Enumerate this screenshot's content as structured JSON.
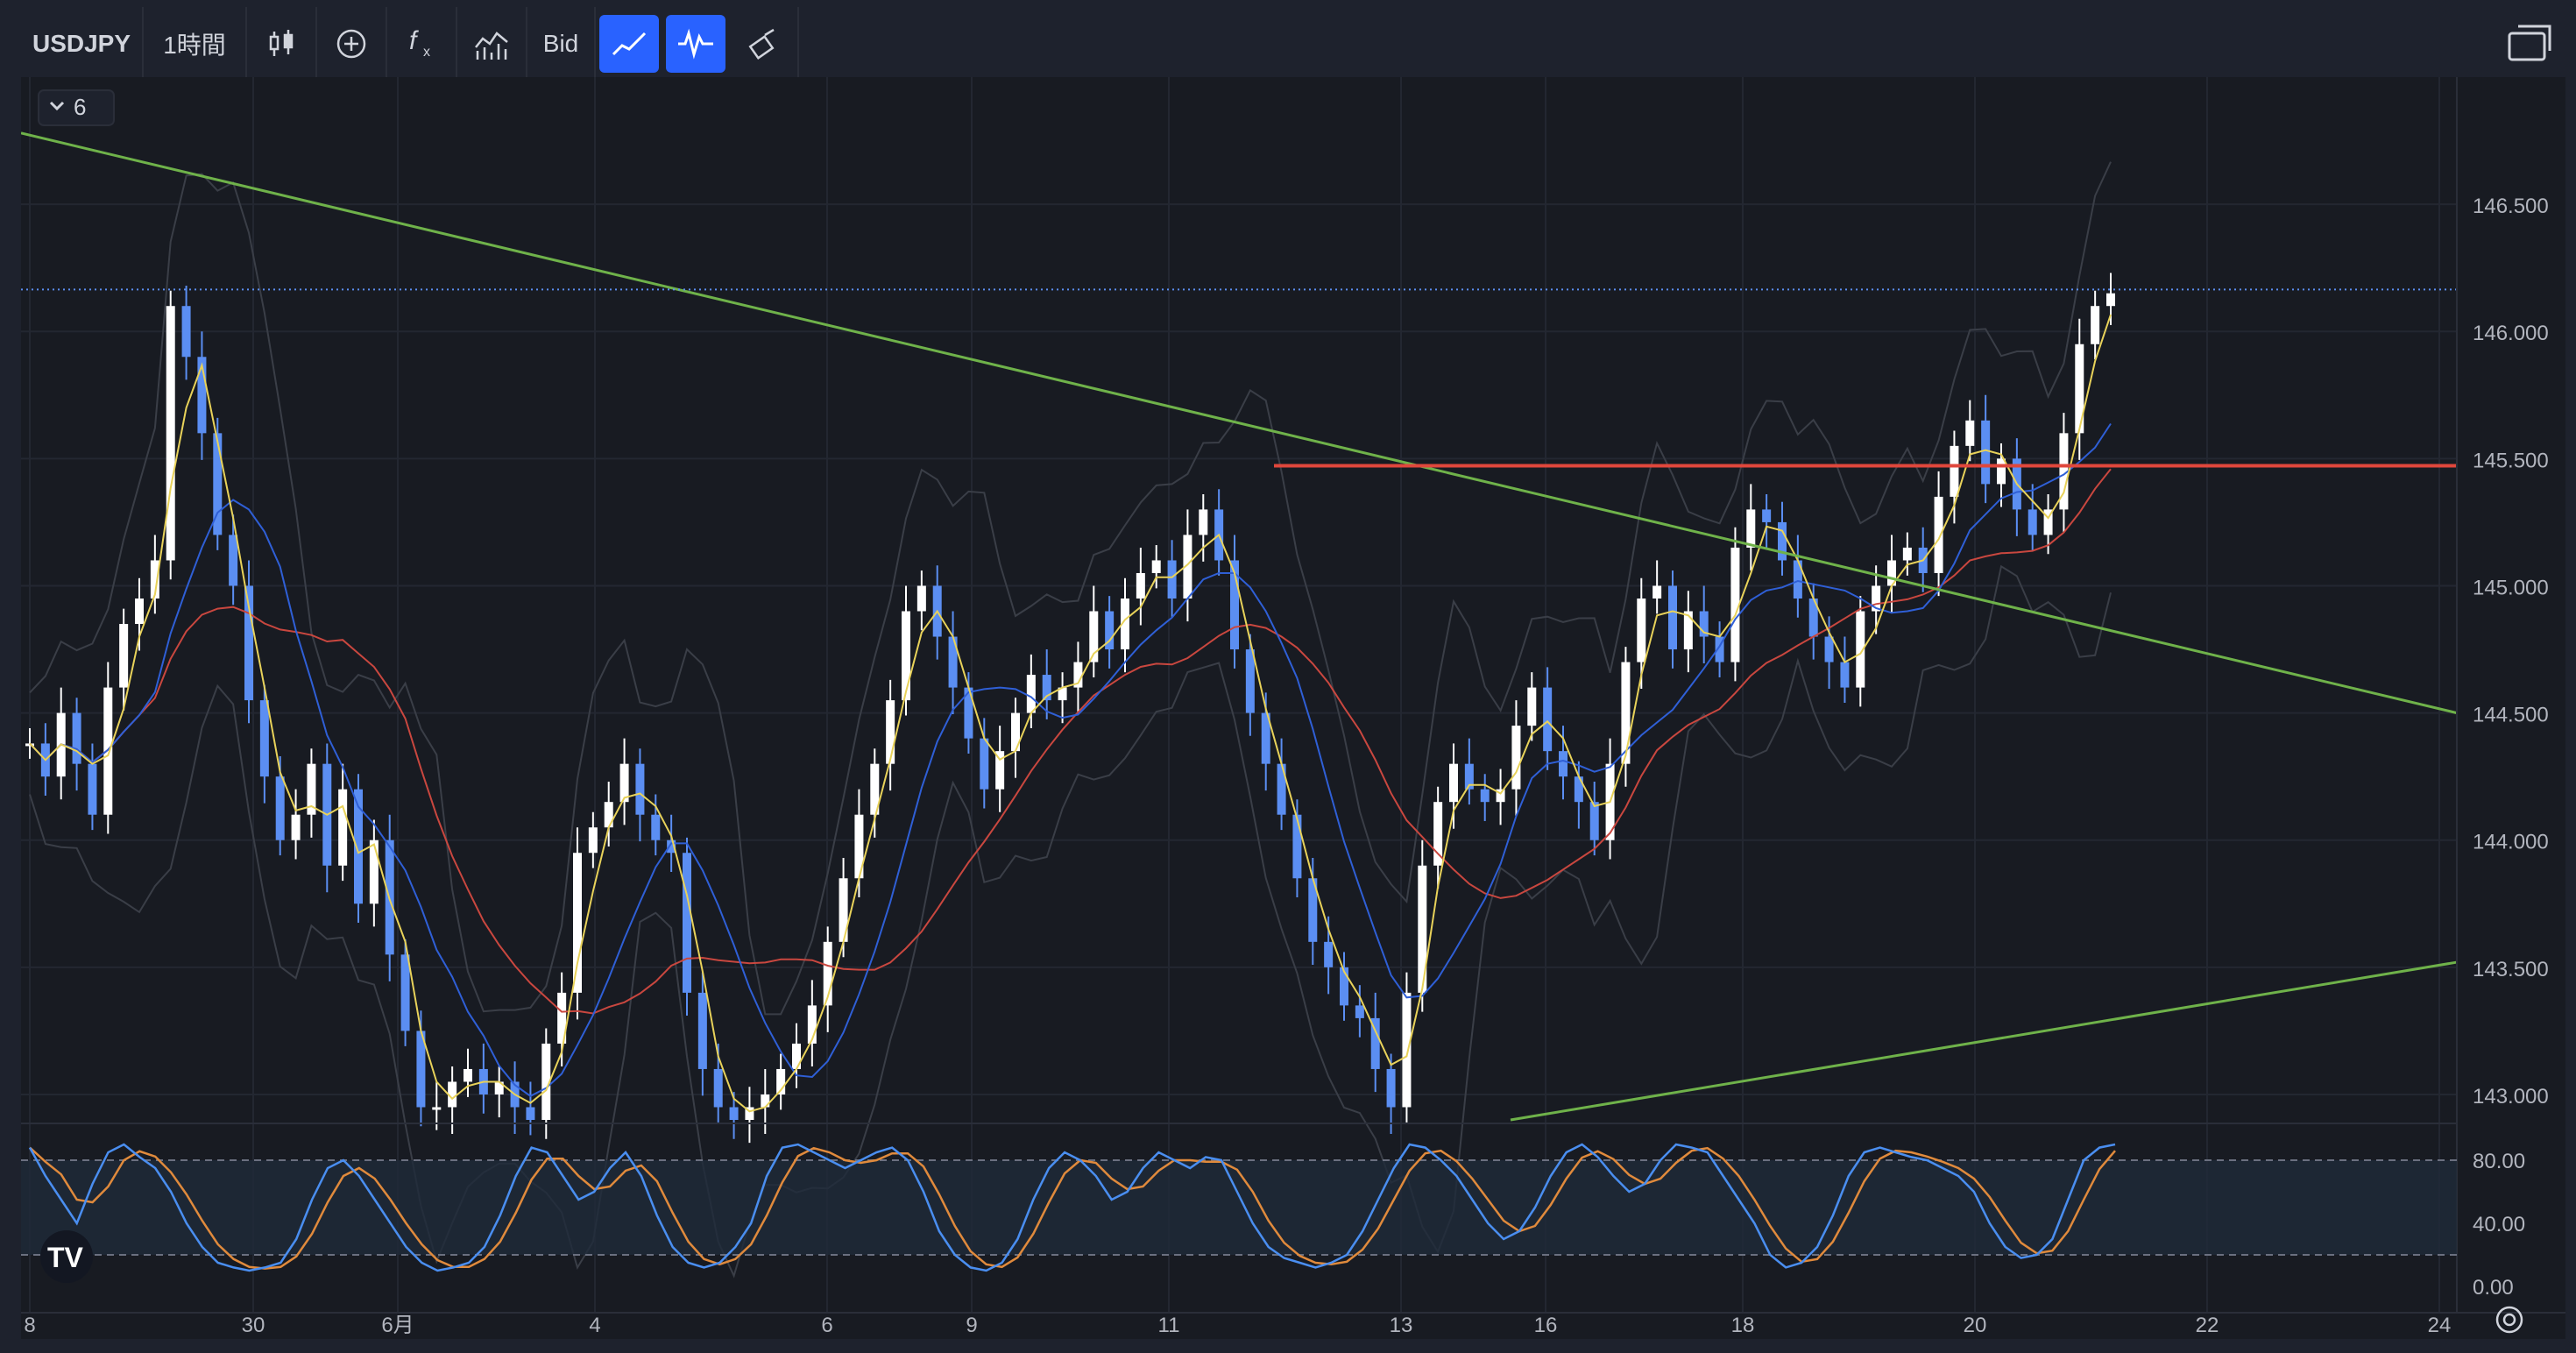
{
  "toolbar": {
    "symbol": "USDJPY",
    "interval": "1時間",
    "bid_label": "Bid",
    "icons": [
      "candles-icon",
      "add-indicator-icon",
      "function-icon",
      "chart-style-icon",
      "bid-label",
      "trend-line-icon",
      "oscillator-icon",
      "brush-icon"
    ]
  },
  "collapse_label": "6",
  "colors": {
    "background": "#181b22",
    "up_candle": "#ffffff",
    "down_candle": "#5b8ef2",
    "ma_fast": "#e8d25a",
    "ma_mid": "#2f5fd6",
    "ma_slow": "#c9473f",
    "trendline": "#6fb24a",
    "horizontal_line": "#e0473c",
    "stoch_k": "#4a8ef0",
    "stoch_d": "#e08a3c"
  },
  "chart_data": {
    "type": "candlestick",
    "symbol": "USDJPY",
    "timeframe": "1時間",
    "price_axis": {
      "ticks": [
        "146.500",
        "146.000",
        "145.500",
        "145.000",
        "144.500",
        "144.000",
        "143.500",
        "143.000"
      ],
      "range": [
        142.9,
        147.0
      ]
    },
    "time_axis_labels": [
      "8",
      "30",
      "6月",
      "4",
      "6",
      "9",
      "11",
      "13",
      "16",
      "18",
      "20",
      "22",
      "24"
    ],
    "current_price_label": "146.165",
    "horizontal_level_label": "145.472",
    "horizontal_level": 145.472,
    "current_price": 146.165,
    "trendlines": [
      {
        "name": "descending",
        "from_label": "8",
        "to_label": "24",
        "start_price": 146.78,
        "end_price": 144.5
      },
      {
        "name": "ascending",
        "from_label": "16",
        "to_label": "24",
        "start_price": 142.9,
        "end_price": 143.52
      }
    ],
    "close_path": [
      144.38,
      144.25,
      144.5,
      144.3,
      144.1,
      144.6,
      144.85,
      144.95,
      145.1,
      146.1,
      145.9,
      145.6,
      145.2,
      145.0,
      144.55,
      144.25,
      144.0,
      144.1,
      144.3,
      143.9,
      144.2,
      143.75,
      144.0,
      143.55,
      143.25,
      142.95,
      142.95,
      143.05,
      143.1,
      143.0,
      143.05,
      142.95,
      142.9,
      143.2,
      143.4,
      143.95,
      144.05,
      144.15,
      144.3,
      144.1,
      144.0,
      143.95,
      143.4,
      143.1,
      142.95,
      142.9,
      142.95,
      143.0,
      143.1,
      143.2,
      143.35,
      143.6,
      143.85,
      144.1,
      144.3,
      144.55,
      144.9,
      145.0,
      144.8,
      144.6,
      144.4,
      144.2,
      144.35,
      144.5,
      144.65,
      144.55,
      144.6,
      144.7,
      144.9,
      144.75,
      144.95,
      145.05,
      145.1,
      144.95,
      145.2,
      145.3,
      145.1,
      144.75,
      144.5,
      144.3,
      144.1,
      143.85,
      143.6,
      143.5,
      143.35,
      143.3,
      143.1,
      142.95,
      143.4,
      143.9,
      144.15,
      144.3,
      144.2,
      144.15,
      144.2,
      144.45,
      144.6,
      144.35,
      144.25,
      144.15,
      144.0,
      144.3,
      144.7,
      144.95,
      145.0,
      144.75,
      144.9,
      144.8,
      144.7,
      145.15,
      145.3,
      145.25,
      145.1,
      144.95,
      144.8,
      144.7,
      144.6,
      144.9,
      145.0,
      145.1,
      145.15,
      145.05,
      145.35,
      145.55,
      145.65,
      145.4,
      145.5,
      145.3,
      145.2,
      145.3,
      145.6,
      145.95,
      146.1,
      146.15
    ],
    "indicator": {
      "name": "stochastic",
      "ticks": [
        "80.00",
        "40.00",
        "0.00"
      ],
      "upper_band": 80,
      "lower_band": 20,
      "k_values": [
        88,
        70,
        55,
        40,
        65,
        85,
        90,
        82,
        75,
        60,
        40,
        25,
        15,
        12,
        10,
        12,
        15,
        30,
        55,
        75,
        80,
        70,
        55,
        40,
        25,
        15,
        10,
        12,
        15,
        25,
        45,
        70,
        88,
        85,
        70,
        55,
        60,
        75,
        85,
        70,
        45,
        25,
        15,
        12,
        15,
        25,
        40,
        70,
        88,
        90,
        85,
        80,
        75,
        80,
        85,
        88,
        80,
        60,
        35,
        20,
        12,
        10,
        15,
        30,
        55,
        75,
        85,
        80,
        70,
        55,
        60,
        75,
        85,
        80,
        75,
        82,
        80,
        60,
        40,
        25,
        18,
        15,
        12,
        15,
        20,
        35,
        55,
        75,
        90,
        88,
        80,
        70,
        55,
        40,
        30,
        35,
        50,
        70,
        85,
        90,
        82,
        70,
        60,
        65,
        80,
        90,
        88,
        85,
        70,
        55,
        40,
        20,
        12,
        15,
        25,
        45,
        70,
        85,
        88,
        85,
        82,
        80,
        75,
        70,
        60,
        40,
        25,
        18,
        20,
        30,
        55,
        80,
        88,
        90
      ]
    }
  }
}
